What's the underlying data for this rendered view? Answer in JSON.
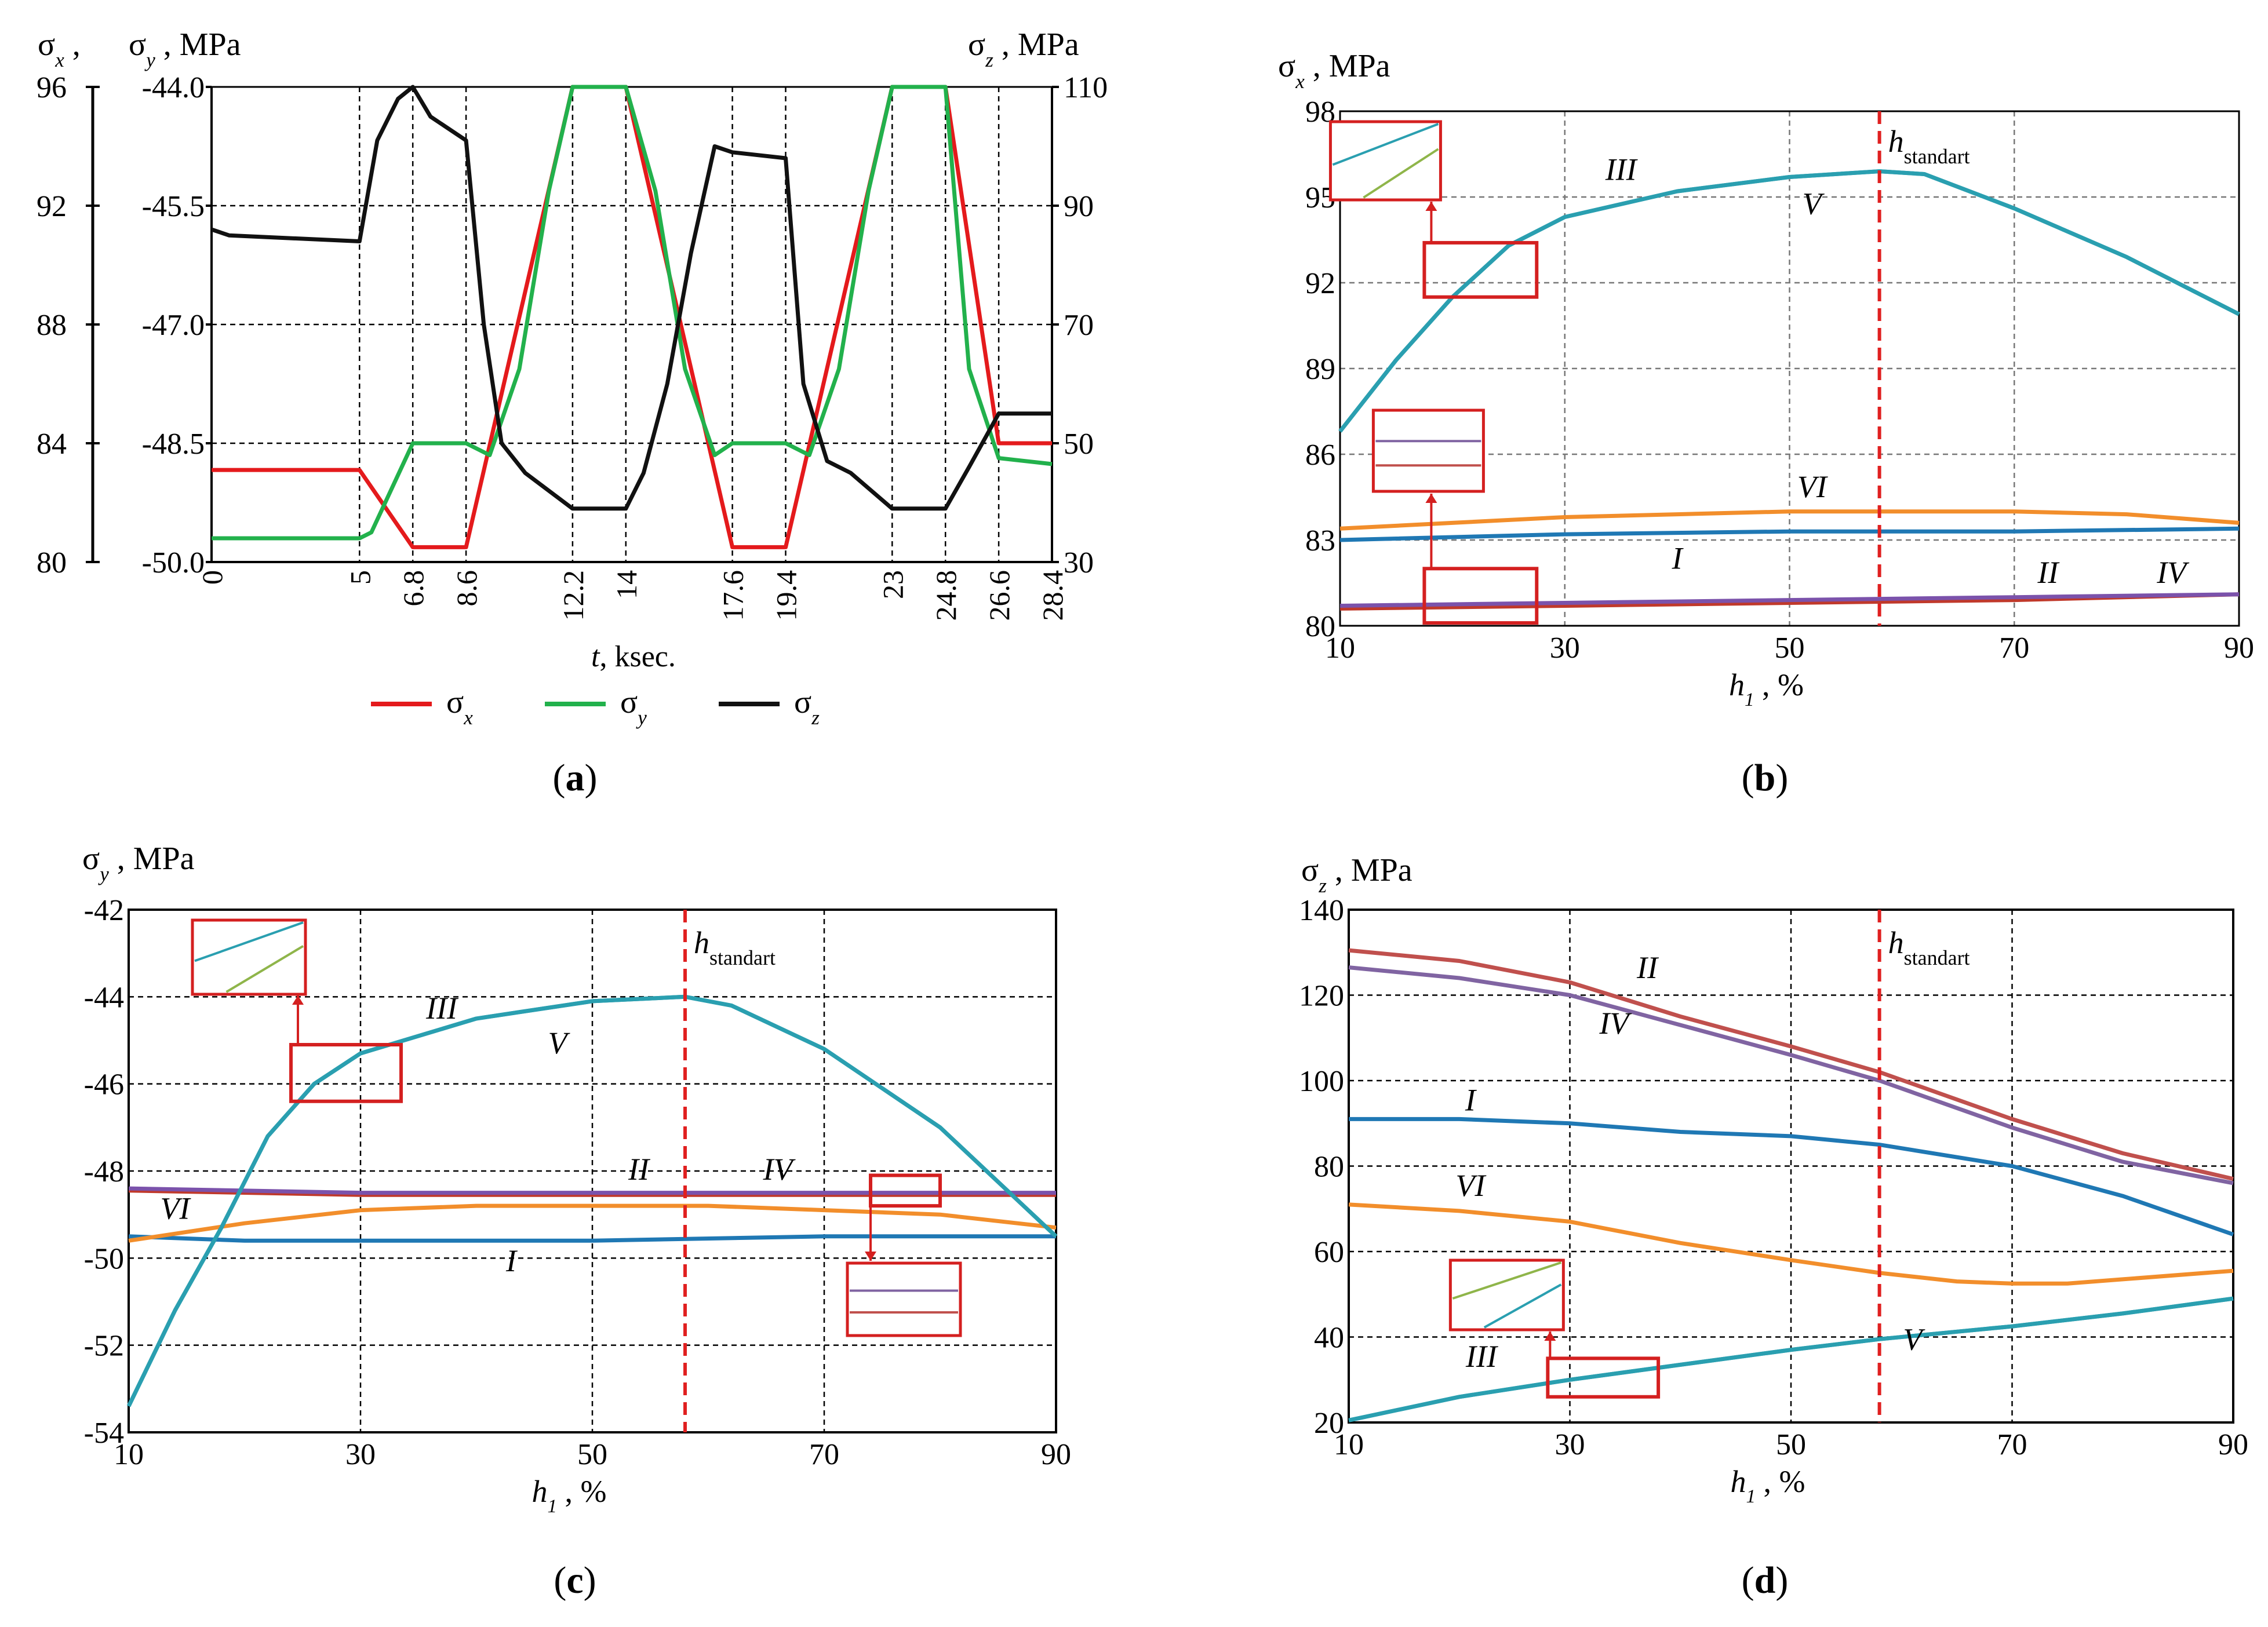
{
  "captions": {
    "a": "a",
    "b": "b",
    "c": "c",
    "d": "d"
  },
  "annotation": {
    "h_standard": "h",
    "h_standard_sub": "standart"
  },
  "chart_data": [
    {
      "id": "a",
      "type": "line",
      "y_left_outer": {
        "symbol": "σ",
        "sub": "x",
        "label": "σx ,",
        "ticks": [
          "96",
          "92",
          "88",
          "84",
          "80"
        ],
        "ylim": [
          80,
          96
        ]
      },
      "y_left_inner": {
        "symbol": "σ",
        "sub": "y",
        "unit": ", MPa",
        "ticks": [
          "-44.0",
          "-45.5",
          "-47.0",
          "-48.5",
          "-50.0"
        ],
        "ylim": [
          -50,
          -44
        ]
      },
      "y_right": {
        "symbol": "σ",
        "sub": "z",
        "unit": ", MPa",
        "ticks": [
          "110",
          "90",
          "70",
          "50",
          "30"
        ],
        "ylim": [
          30,
          110
        ]
      },
      "x_ticks": [
        "0",
        "5",
        "6.8",
        "8.6",
        "12.2",
        "14",
        "17.6",
        "19.4",
        "23",
        "24.8",
        "26.6",
        "28.4"
      ],
      "xlim": [
        0,
        28.4
      ],
      "xlabel": {
        "sym": "t",
        "unit": ", ksec."
      },
      "legend": [
        {
          "sym": "σ",
          "sub": "x",
          "color": "#e41a1c"
        },
        {
          "sym": "σ",
          "sub": "y",
          "color": "#22b14c"
        },
        {
          "sym": "σ",
          "sub": "z",
          "color": "#111111"
        }
      ],
      "series": [
        {
          "name": "σx",
          "axis": "left",
          "color": "#e41a1c",
          "x": [
            0,
            5,
            6.8,
            8.6,
            12.2,
            14,
            17.6,
            19.4,
            23,
            24.8,
            26.6,
            28.4
          ],
          "y": [
            83.1,
            83.1,
            80.5,
            80.5,
            96,
            96,
            80.5,
            80.5,
            96,
            96,
            84.0,
            84.0
          ]
        },
        {
          "name": "σy",
          "axis": "left",
          "color": "#22b14c",
          "x": [
            0,
            5,
            5.4,
            6.8,
            8.6,
            9.4,
            10.4,
            11.4,
            12.2,
            14,
            15.0,
            16.0,
            17.0,
            17.6,
            19.4,
            20.2,
            21.2,
            22.2,
            23,
            24.8,
            25.6,
            26.6,
            28.4
          ],
          "y": [
            80.8,
            80.8,
            81.0,
            84.0,
            84.0,
            83.6,
            86.5,
            92.5,
            96,
            96,
            92.5,
            86.5,
            83.6,
            84.0,
            84.0,
            83.6,
            86.5,
            92.5,
            96,
            96,
            86.5,
            83.5,
            83.3
          ]
        },
        {
          "name": "σz",
          "axis": "right",
          "color": "#111111",
          "x": [
            0,
            0.6,
            5,
            5.6,
            6.3,
            6.8,
            7.4,
            8.6,
            9.2,
            9.8,
            10.6,
            12.2,
            14,
            14.6,
            15.4,
            16.2,
            17.0,
            17.6,
            19.4,
            20.0,
            20.8,
            21.6,
            23,
            24.8,
            25.6,
            26.6,
            28.4
          ],
          "y": [
            86,
            85,
            84,
            101,
            108,
            110,
            105,
            101,
            70,
            50,
            45,
            39,
            39,
            45,
            60,
            82,
            100,
            99,
            98,
            60,
            47,
            45,
            39,
            39,
            46,
            55,
            55
          ]
        }
      ]
    },
    {
      "id": "b",
      "type": "line",
      "ylabel": {
        "symbol": "σ",
        "sub": "x",
        "unit": ", MPa"
      },
      "y_ticks": [
        "80",
        "83",
        "86",
        "89",
        "92",
        "95",
        "98"
      ],
      "ylim": [
        80,
        98
      ],
      "x_ticks": [
        "10",
        "30",
        "50",
        "70",
        "90"
      ],
      "xlim": [
        10,
        90
      ],
      "xlabel": {
        "sym": "h",
        "sub": "1",
        "unit": ", %"
      },
      "h_standard": 58,
      "series": [
        {
          "name": "I",
          "color": "#1f78b4",
          "x": [
            10,
            30,
            50,
            58,
            70,
            90
          ],
          "y": [
            83.0,
            83.2,
            83.3,
            83.3,
            83.3,
            83.4
          ]
        },
        {
          "name": "II",
          "color": "#c0392b",
          "x": [
            10,
            30,
            50,
            70,
            90
          ],
          "y": [
            80.6,
            80.7,
            80.8,
            80.9,
            81.1
          ]
        },
        {
          "name": "III",
          "color": "#2a9fb0",
          "x": [
            10,
            15,
            20,
            25,
            30,
            40,
            50,
            58,
            62,
            70,
            80,
            90
          ],
          "y": [
            86.8,
            89.3,
            91.5,
            93.3,
            94.3,
            95.2,
            95.7,
            95.9,
            95.8,
            94.6,
            92.9,
            90.9
          ]
        },
        {
          "name": "IV",
          "color": "#7b52ab",
          "x": [
            10,
            30,
            50,
            70,
            90
          ],
          "y": [
            80.7,
            80.8,
            80.9,
            81.0,
            81.1
          ]
        },
        {
          "name": "V",
          "color": "#2a9fb0",
          "x": [
            10,
            15,
            20,
            25,
            30,
            40,
            50,
            58,
            62,
            70,
            80,
            90
          ],
          "y": [
            86.8,
            89.3,
            91.5,
            93.3,
            94.3,
            95.2,
            95.7,
            95.9,
            95.8,
            94.6,
            92.9,
            90.9
          ]
        },
        {
          "name": "VI",
          "color": "#f28e2b",
          "x": [
            10,
            20,
            30,
            40,
            50,
            58,
            70,
            80,
            90
          ],
          "y": [
            83.4,
            83.6,
            83.8,
            83.9,
            84.0,
            84.0,
            84.0,
            83.9,
            83.6
          ]
        }
      ],
      "labels": [
        {
          "text": "III",
          "x": 35,
          "y": 95.6
        },
        {
          "text": "V",
          "x": 52,
          "y": 94.4
        },
        {
          "text": "VI",
          "x": 52,
          "y": 84.5
        },
        {
          "text": "I",
          "x": 40,
          "y": 82.0
        },
        {
          "text": "II",
          "x": 73,
          "y": 81.5
        },
        {
          "text": "IV",
          "x": 84,
          "y": 81.5
        }
      ]
    },
    {
      "id": "c",
      "type": "line",
      "ylabel": {
        "symbol": "σ",
        "sub": "y",
        "unit": ", MPa"
      },
      "y_ticks": [
        "-54",
        "-52",
        "-50",
        "-48",
        "-46",
        "-44",
        "-42"
      ],
      "ylim": [
        -54,
        -42
      ],
      "x_ticks": [
        "10",
        "30",
        "50",
        "70",
        "90"
      ],
      "xlim": [
        10,
        90
      ],
      "xlabel": {
        "sym": "h",
        "sub": "1",
        "unit": ", %"
      },
      "h_standard": 58,
      "series": [
        {
          "name": "I",
          "color": "#1f78b4",
          "x": [
            10,
            20,
            30,
            50,
            70,
            90
          ],
          "y": [
            -49.5,
            -49.6,
            -49.6,
            -49.6,
            -49.5,
            -49.5
          ]
        },
        {
          "name": "II",
          "color": "#c0392b",
          "x": [
            10,
            30,
            50,
            70,
            90
          ],
          "y": [
            -48.45,
            -48.55,
            -48.55,
            -48.55,
            -48.55
          ]
        },
        {
          "name": "III",
          "color": "#2a9fb0",
          "x": [
            10,
            14,
            18,
            22,
            26,
            30,
            40,
            50,
            58,
            62,
            70,
            80,
            90
          ],
          "y": [
            -53.4,
            -51.2,
            -49.3,
            -47.2,
            -46.0,
            -45.3,
            -44.5,
            -44.1,
            -44.0,
            -44.2,
            -45.2,
            -47.0,
            -49.5
          ]
        },
        {
          "name": "IV",
          "color": "#7b52ab",
          "x": [
            10,
            30,
            50,
            70,
            90
          ],
          "y": [
            -48.4,
            -48.5,
            -48.5,
            -48.5,
            -48.5
          ]
        },
        {
          "name": "V",
          "color": "#2a9fb0",
          "x": [
            10,
            14,
            18,
            22,
            26,
            30,
            40,
            50,
            58,
            62,
            70,
            80,
            90
          ],
          "y": [
            -53.4,
            -51.2,
            -49.3,
            -47.2,
            -46.0,
            -45.3,
            -44.5,
            -44.1,
            -44.0,
            -44.2,
            -45.2,
            -47.0,
            -49.5
          ]
        },
        {
          "name": "VI",
          "color": "#f28e2b",
          "x": [
            10,
            20,
            30,
            40,
            50,
            60,
            70,
            80,
            90
          ],
          "y": [
            -49.6,
            -49.2,
            -48.9,
            -48.8,
            -48.8,
            -48.8,
            -48.9,
            -49.0,
            -49.3
          ]
        }
      ],
      "labels": [
        {
          "text": "III",
          "x": 37,
          "y": -44.5
        },
        {
          "text": "V",
          "x": 47,
          "y": -45.3
        },
        {
          "text": "II",
          "x": 54,
          "y": -48.2
        },
        {
          "text": "IV",
          "x": 66,
          "y": -48.2
        },
        {
          "text": "VI",
          "x": 14,
          "y": -49.1
        },
        {
          "text": "I",
          "x": 43,
          "y": -50.3
        }
      ]
    },
    {
      "id": "d",
      "type": "line",
      "ylabel": {
        "symbol": "σ",
        "sub": "z",
        "unit": ", MPa"
      },
      "y_ticks": [
        "20",
        "40",
        "60",
        "80",
        "100",
        "120",
        "140"
      ],
      "ylim": [
        20,
        140
      ],
      "x_ticks": [
        "10",
        "30",
        "50",
        "70",
        "90"
      ],
      "xlim": [
        10,
        90
      ],
      "xlabel": {
        "sym": "h",
        "sub": "1",
        "unit": ", %"
      },
      "h_standard": 58,
      "series": [
        {
          "name": "I",
          "color": "#1f78b4",
          "x": [
            10,
            20,
            30,
            40,
            50,
            58,
            70,
            80,
            90
          ],
          "y": [
            91,
            91,
            90,
            88,
            87,
            85,
            80,
            73,
            64
          ]
        },
        {
          "name": "II",
          "color": "#c0504d",
          "x": [
            10,
            20,
            30,
            40,
            50,
            58,
            70,
            80,
            90
          ],
          "y": [
            130.5,
            128,
            123,
            115,
            108,
            102,
            91,
            83,
            77
          ]
        },
        {
          "name": "III",
          "color": "#2a9fb0",
          "x": [
            10,
            20,
            30,
            40,
            50,
            58,
            70,
            80,
            90
          ],
          "y": [
            20.5,
            26,
            30,
            33.5,
            37,
            39.5,
            42.5,
            45.5,
            49
          ]
        },
        {
          "name": "IV",
          "color": "#8064a2",
          "x": [
            10,
            20,
            30,
            40,
            50,
            58,
            70,
            80,
            90
          ],
          "y": [
            126.5,
            124,
            120,
            113,
            106,
            100,
            89,
            81,
            76
          ]
        },
        {
          "name": "V",
          "color": "#2a9fb0",
          "x": [
            10,
            20,
            30,
            40,
            50,
            58,
            70,
            80,
            90
          ],
          "y": [
            20.5,
            26,
            30,
            33.5,
            37,
            39.5,
            42.5,
            45.5,
            49
          ]
        },
        {
          "name": "VI",
          "color": "#f28e2b",
          "x": [
            10,
            20,
            30,
            40,
            50,
            58,
            65,
            70,
            75,
            80,
            90
          ],
          "y": [
            71,
            69.5,
            67,
            62,
            58,
            55,
            53,
            52.5,
            52.5,
            53.5,
            55.5
          ]
        }
      ],
      "labels": [
        {
          "text": "II",
          "x": 37,
          "y": 124
        },
        {
          "text": "IV",
          "x": 34,
          "y": 111
        },
        {
          "text": "I",
          "x": 21,
          "y": 93
        },
        {
          "text": "VI",
          "x": 21,
          "y": 73
        },
        {
          "text": "III",
          "x": 22,
          "y": 33
        },
        {
          "text": "V",
          "x": 61,
          "y": 37
        }
      ]
    }
  ]
}
